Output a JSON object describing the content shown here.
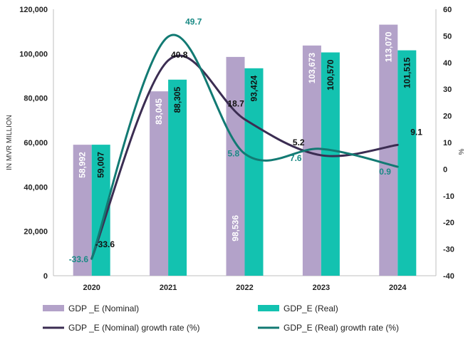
{
  "chart_data": {
    "type": "bar",
    "title": "",
    "categories": [
      "2020",
      "2021",
      "2022",
      "2023",
      "2024"
    ],
    "xlabel": "",
    "ylabel": "IN MVR MILLION",
    "y2label": "%",
    "ylim": [
      0,
      120000
    ],
    "y2lim": [
      -40,
      60
    ],
    "yticks": [
      "0",
      "20,000",
      "40,000",
      "60,000",
      "80,000",
      "100,000",
      "120,000"
    ],
    "y2ticks": [
      "-40",
      "-30",
      "-20",
      "-10",
      "0",
      "10",
      "20",
      "30",
      "40",
      "50",
      "60"
    ],
    "grid": false,
    "legend_position": "bottom",
    "series": [
      {
        "name": "GDP _E (Nominal)",
        "kind": "bar",
        "color": "#b3a2c9",
        "axis": "left",
        "values": [
          58992,
          83045,
          98536,
          103673,
          113070
        ],
        "labels": [
          "58,992",
          "83,045",
          "98,536",
          "103,673",
          "113,070"
        ],
        "label_color": "#ffffff"
      },
      {
        "name": "GDP_E (Real)",
        "kind": "bar",
        "color": "#13c2b0",
        "axis": "left",
        "values": [
          59007,
          88305,
          93424,
          100570,
          101515
        ],
        "labels": [
          "59,007",
          "88,305",
          "93,424",
          "100,570",
          "101,515"
        ],
        "label_color": "#111111"
      },
      {
        "name": "GDP _E (Nominal) growth rate (%)",
        "kind": "line",
        "color": "#3b2d52",
        "axis": "right",
        "values": [
          -33.6,
          40.8,
          18.7,
          5.2,
          9.1
        ],
        "labels": [
          "-33.6",
          "40.8",
          "18.7",
          "5.2",
          "9.1"
        ],
        "label_color": "#111111"
      },
      {
        "name": "GDP_E (Real) growth rate (%)",
        "kind": "line",
        "color": "#127a73",
        "axis": "right",
        "values": [
          -33.6,
          49.7,
          5.8,
          7.6,
          0.9
        ],
        "labels": [
          "-33.6",
          "49.7",
          "5.8",
          "7.6",
          "0.9"
        ],
        "label_color": "#1a8a85"
      }
    ]
  }
}
